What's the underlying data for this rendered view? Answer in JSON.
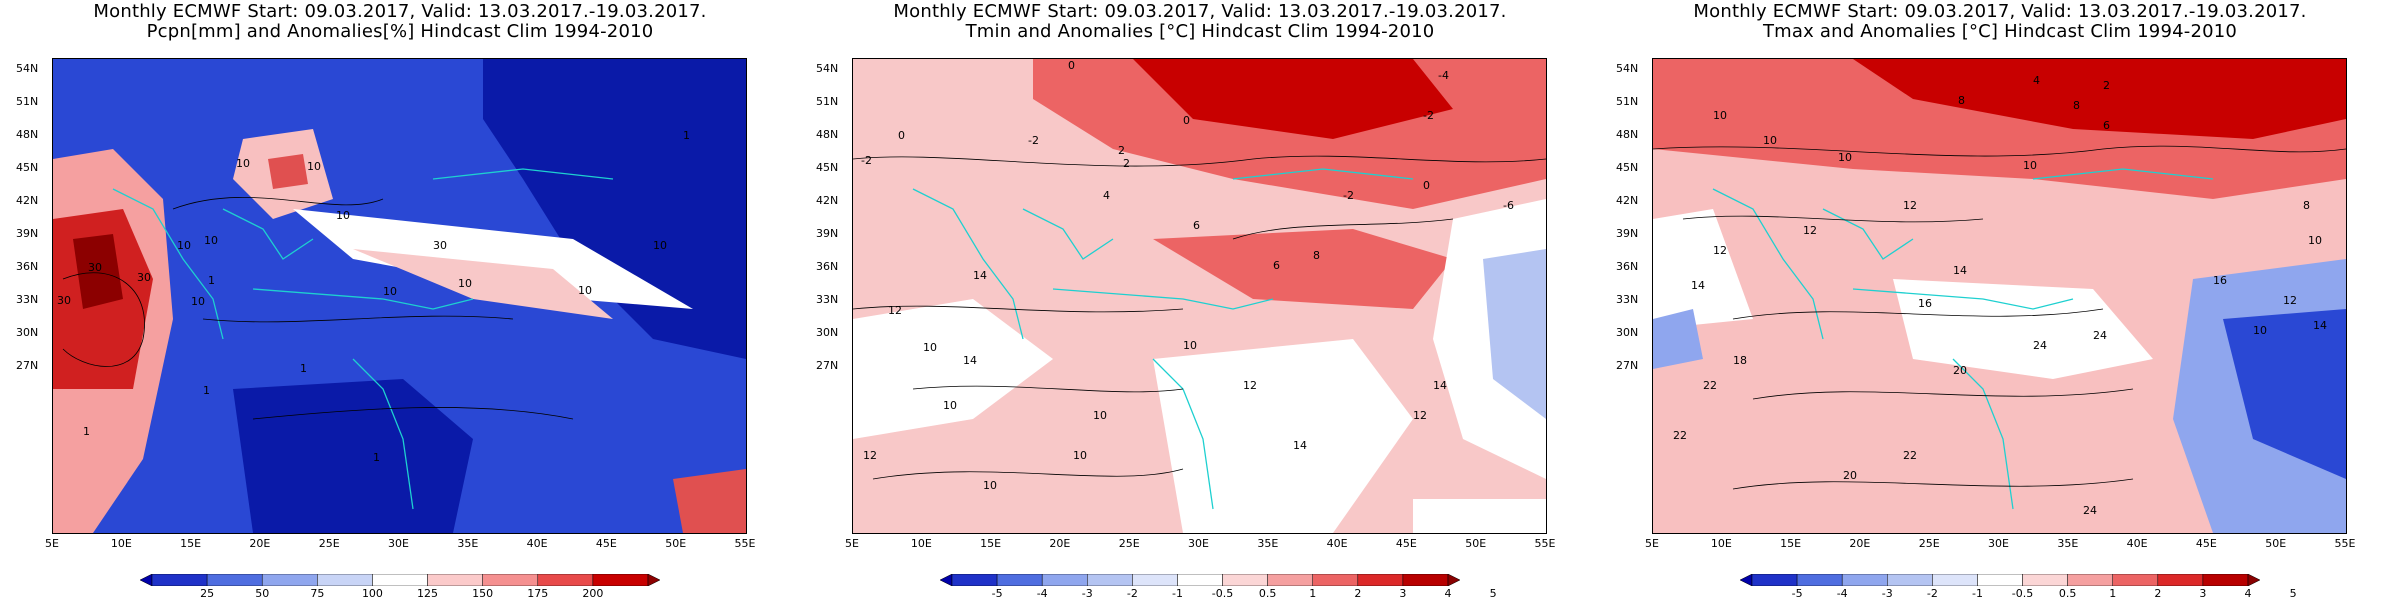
{
  "panels": [
    {
      "title_line1": "Monthly ECMWF Start: 09.03.2017, Valid: 13.03.2017.-19.03.2017.",
      "title_line2": "Pcpn[mm] and Anomalies[%] Hindcast Clim 1994-2010",
      "colorbar": {
        "labels": [
          "25",
          "50",
          "75",
          "100",
          "125",
          "150",
          "175",
          "200"
        ],
        "colors": [
          "#0000a8",
          "#1f32c8",
          "#4f6ee0",
          "#8fa6ee",
          "#c8d4f6",
          "#ffffff",
          "#fbcaca",
          "#f59090",
          "#e84a4a",
          "#c80000",
          "#8c0000"
        ]
      },
      "contour_labels": [
        "10",
        "10",
        "10",
        "10",
        "10",
        "30",
        "30",
        "30",
        "10",
        "10",
        "10",
        "1",
        "1",
        "1",
        "1",
        "1",
        "1",
        "10",
        "10",
        "30"
      ]
    },
    {
      "title_line1": "Monthly ECMWF Start: 09.03.2017, Valid: 13.03.2017.-19.03.2017.",
      "title_line2": "Tmin and Anomalies [°C] Hindcast Clim 1994-2010",
      "colorbar": {
        "labels": [
          "-5",
          "-4",
          "-3",
          "-2",
          "-1",
          "-0.5",
          "0.5",
          "1",
          "2",
          "3",
          "4",
          "5"
        ],
        "colors": [
          "#0000a8",
          "#1f32c8",
          "#4f6ee0",
          "#8fa6ee",
          "#b4c4f2",
          "#dde4fa",
          "#ffffff",
          "#fbd6d6",
          "#f5a0a0",
          "#ec6464",
          "#dc2828",
          "#b80000",
          "#880000"
        ]
      },
      "contour_labels": [
        "0",
        "-4",
        "-2",
        "-2",
        "2",
        "0",
        "2",
        "-2",
        "4",
        "6",
        "0",
        "-2",
        "10",
        "10",
        "12",
        "14",
        "10",
        "12",
        "10",
        "10",
        "12",
        "14",
        "12",
        "14",
        "10",
        "14",
        "6",
        "8",
        "-6",
        "0"
      ]
    },
    {
      "title_line1": "Monthly ECMWF Start: 09.03.2017, Valid: 13.03.2017.-19.03.2017.",
      "title_line2": "Tmax and Anomalies [°C] Hindcast Clim 1994-2010",
      "colorbar": {
        "labels": [
          "-5",
          "-4",
          "-3",
          "-2",
          "-1",
          "-0.5",
          "0.5",
          "1",
          "2",
          "3",
          "4",
          "5"
        ],
        "colors": [
          "#0000a8",
          "#1f32c8",
          "#4f6ee0",
          "#8fa6ee",
          "#b4c4f2",
          "#dde4fa",
          "#ffffff",
          "#fbd6d6",
          "#f5a0a0",
          "#ec6464",
          "#dc2828",
          "#b80000",
          "#880000"
        ]
      },
      "contour_labels": [
        "4",
        "2",
        "8",
        "8",
        "6",
        "10",
        "10",
        "10",
        "10",
        "12",
        "12",
        "12",
        "14",
        "14",
        "16",
        "18",
        "20",
        "22",
        "22",
        "24",
        "24",
        "20",
        "22",
        "24",
        "10",
        "12",
        "14",
        "16",
        "8",
        "10"
      ]
    }
  ],
  "axes": {
    "lat_labels": [
      "54N",
      "51N",
      "48N",
      "45N",
      "42N",
      "39N",
      "36N",
      "33N",
      "30N",
      "27N"
    ],
    "lon_labels": [
      "5E",
      "10E",
      "15E",
      "20E",
      "25E",
      "30E",
      "35E",
      "40E",
      "45E",
      "50E",
      "55E"
    ]
  }
}
